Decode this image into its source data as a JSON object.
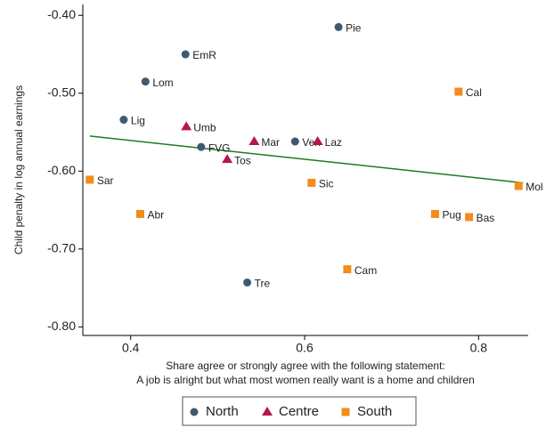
{
  "chart_data": {
    "type": "scatter",
    "x_label_lines": [
      "Share agree or strongly agree with the following statement:",
      "A job is alright but what most women really want is a home and children"
    ],
    "y_label": "Child penalty in log annual earnings",
    "xlim": [
      0.345,
      0.857
    ],
    "ylim": [
      -0.811,
      -0.386
    ],
    "xticks": [
      0.4,
      0.6,
      0.8
    ],
    "yticks": [
      {
        "value": -0.4,
        "label": "-0.40"
      },
      {
        "value": -0.5,
        "label": "-0.50"
      },
      {
        "value": -0.6,
        "label": "-0.60"
      },
      {
        "value": -0.7,
        "label": "-0.70"
      },
      {
        "value": -0.8,
        "label": "-0.80"
      }
    ],
    "series": [
      {
        "name": "North",
        "color": "#3d5a73",
        "marker": "circle",
        "labels": [
          "Pie",
          "EmR",
          "Lom",
          "Lig",
          "FVG",
          "Ven",
          "Tre"
        ],
        "x": [
          0.639,
          0.463,
          0.417,
          0.392,
          0.481,
          0.589,
          0.534
        ],
        "y": [
          -0.415,
          -0.45,
          -0.485,
          -0.534,
          -0.569,
          -0.562,
          -0.743
        ]
      },
      {
        "name": "Centre",
        "color": "#b5174b",
        "marker": "triangle",
        "labels": [
          "Umb",
          "Mar",
          "Laz",
          "Tos"
        ],
        "x": [
          0.464,
          0.542,
          0.615,
          0.511
        ],
        "y": [
          -0.543,
          -0.562,
          -0.562,
          -0.585
        ]
      },
      {
        "name": "South",
        "color": "#f28c1b",
        "marker": "square",
        "labels": [
          "Cal",
          "Sar",
          "Sic",
          "Abr",
          "Pug",
          "Bas",
          "Mol",
          "Cam"
        ],
        "x": [
          0.777,
          0.353,
          0.608,
          0.411,
          0.75,
          0.789,
          0.846,
          0.649
        ],
        "y": [
          -0.498,
          -0.611,
          -0.615,
          -0.655,
          -0.655,
          -0.659,
          -0.619,
          -0.726
        ]
      }
    ],
    "fit_line": {
      "color": "#1f7a1f",
      "x": [
        0.353,
        0.851
      ],
      "y": [
        -0.555,
        -0.615
      ]
    }
  }
}
